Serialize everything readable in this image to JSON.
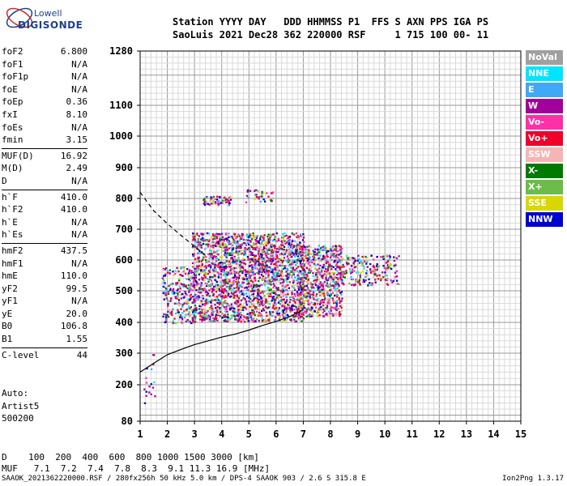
{
  "logo": {
    "line1": "Lowell",
    "line2": "DIGISONDE"
  },
  "header": {
    "line1": "Station YYYY DAY   DDD HHMMSS P1  FFS S AXN PPS IGA PS",
    "line2": "SaoLuis 2021 Dec28 362 220000 RSF     1 715 100 00- 11"
  },
  "params_a": [
    {
      "k": "foF2",
      "v": "6.800"
    },
    {
      "k": "foF1",
      "v": "N/A"
    },
    {
      "k": "foF1p",
      "v": "N/A"
    },
    {
      "k": "foE",
      "v": "N/A"
    },
    {
      "k": "foEp",
      "v": "0.36"
    },
    {
      "k": "fxI",
      "v": "8.10"
    },
    {
      "k": "foEs",
      "v": "N/A"
    },
    {
      "k": "fmin",
      "v": "3.15"
    }
  ],
  "params_b": [
    {
      "k": "MUF(D)",
      "v": "16.92"
    },
    {
      "k": "M(D)",
      "v": "2.49"
    },
    {
      "k": "D",
      "v": "N/A"
    }
  ],
  "params_c": [
    {
      "k": "h`F",
      "v": "410.0"
    },
    {
      "k": "h`F2",
      "v": "410.0"
    },
    {
      "k": "h`E",
      "v": "N/A"
    },
    {
      "k": "h`Es",
      "v": "N/A"
    }
  ],
  "params_d": [
    {
      "k": "hmF2",
      "v": "437.5"
    },
    {
      "k": "hmF1",
      "v": "N/A"
    },
    {
      "k": "hmE",
      "v": "110.0"
    },
    {
      "k": "yF2",
      "v": "99.5"
    },
    {
      "k": "yF1",
      "v": "N/A"
    },
    {
      "k": "yE",
      "v": "20.0"
    },
    {
      "k": "B0",
      "v": "106.8"
    },
    {
      "k": "B1",
      "v": "1.55"
    }
  ],
  "params_e": [
    {
      "k": "C-level",
      "v": "44"
    }
  ],
  "auto_text": "Auto:\nArtist5\n500200",
  "legend": [
    {
      "label": "NoVal",
      "color": "#a0a0a0"
    },
    {
      "label": "NNE",
      "color": "#00e5ff"
    },
    {
      "label": "E",
      "color": "#3fa9f5"
    },
    {
      "label": "W",
      "color": "#a2009a"
    },
    {
      "label": "Vo-",
      "color": "#ff2fa8"
    },
    {
      "label": "Vo+",
      "color": "#f0002a"
    },
    {
      "label": "SSW",
      "color": "#f5b5b5"
    },
    {
      "label": "X-",
      "color": "#007a00"
    },
    {
      "label": "X+",
      "color": "#6dbb4a"
    },
    {
      "label": "SSE",
      "color": "#d8d800"
    },
    {
      "label": "NNW",
      "color": "#0000d0"
    }
  ],
  "muf_table": "D    100  200  400  600  800 1000 1500 3000 [km]\nMUF   7.1  7.2  7.4  7.8  8.3  9.1 11.3 16.9 [MHz]",
  "footer": "SAAOK_2021362220000.RSF / 280fx256h 50 kHz 5.0 km / DPS-4 SAAOK 903 / 2.6 S 315.8 E",
  "version": "Ion2Png 1.3.17",
  "chart_data": {
    "type": "scatter",
    "x_ticks": [
      "1",
      "2",
      "3",
      "4",
      "5",
      "6",
      "7",
      "8",
      "9",
      "10",
      "11",
      "12",
      "13",
      "14",
      "15"
    ],
    "y_ticks": [
      "80",
      "200",
      "300",
      "400",
      "500",
      "600",
      "700",
      "800",
      "900",
      "1000",
      "1100",
      "1280"
    ],
    "xlim": [
      1,
      15
    ],
    "ylim": [
      80,
      1280
    ],
    "grid": true,
    "legend_placement": "right"
  }
}
